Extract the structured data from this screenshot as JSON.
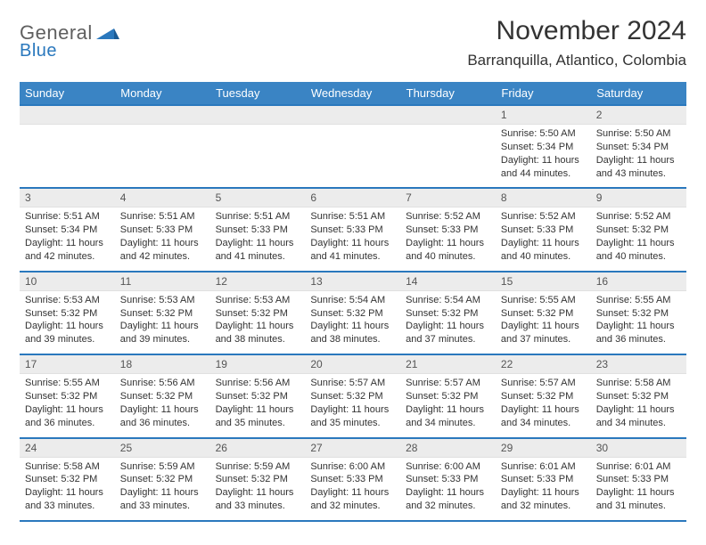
{
  "logo": {
    "text1": "General",
    "text2": "Blue"
  },
  "title": "November 2024",
  "location": "Barranquilla, Atlantico, Colombia",
  "colors": {
    "header_bg": "#3a84c4",
    "header_text": "#ffffff",
    "border": "#2a78bd",
    "daynum_bg": "#ececec",
    "body_text": "#333333",
    "logo_gray": "#5f5f5f",
    "logo_blue": "#2a78bd"
  },
  "dow": [
    "Sunday",
    "Monday",
    "Tuesday",
    "Wednesday",
    "Thursday",
    "Friday",
    "Saturday"
  ],
  "weeks": [
    [
      null,
      null,
      null,
      null,
      null,
      {
        "n": "1",
        "sr": "5:50 AM",
        "ss": "5:34 PM",
        "dl": "11 hours and 44 minutes."
      },
      {
        "n": "2",
        "sr": "5:50 AM",
        "ss": "5:34 PM",
        "dl": "11 hours and 43 minutes."
      }
    ],
    [
      {
        "n": "3",
        "sr": "5:51 AM",
        "ss": "5:34 PM",
        "dl": "11 hours and 42 minutes."
      },
      {
        "n": "4",
        "sr": "5:51 AM",
        "ss": "5:33 PM",
        "dl": "11 hours and 42 minutes."
      },
      {
        "n": "5",
        "sr": "5:51 AM",
        "ss": "5:33 PM",
        "dl": "11 hours and 41 minutes."
      },
      {
        "n": "6",
        "sr": "5:51 AM",
        "ss": "5:33 PM",
        "dl": "11 hours and 41 minutes."
      },
      {
        "n": "7",
        "sr": "5:52 AM",
        "ss": "5:33 PM",
        "dl": "11 hours and 40 minutes."
      },
      {
        "n": "8",
        "sr": "5:52 AM",
        "ss": "5:33 PM",
        "dl": "11 hours and 40 minutes."
      },
      {
        "n": "9",
        "sr": "5:52 AM",
        "ss": "5:32 PM",
        "dl": "11 hours and 40 minutes."
      }
    ],
    [
      {
        "n": "10",
        "sr": "5:53 AM",
        "ss": "5:32 PM",
        "dl": "11 hours and 39 minutes."
      },
      {
        "n": "11",
        "sr": "5:53 AM",
        "ss": "5:32 PM",
        "dl": "11 hours and 39 minutes."
      },
      {
        "n": "12",
        "sr": "5:53 AM",
        "ss": "5:32 PM",
        "dl": "11 hours and 38 minutes."
      },
      {
        "n": "13",
        "sr": "5:54 AM",
        "ss": "5:32 PM",
        "dl": "11 hours and 38 minutes."
      },
      {
        "n": "14",
        "sr": "5:54 AM",
        "ss": "5:32 PM",
        "dl": "11 hours and 37 minutes."
      },
      {
        "n": "15",
        "sr": "5:55 AM",
        "ss": "5:32 PM",
        "dl": "11 hours and 37 minutes."
      },
      {
        "n": "16",
        "sr": "5:55 AM",
        "ss": "5:32 PM",
        "dl": "11 hours and 36 minutes."
      }
    ],
    [
      {
        "n": "17",
        "sr": "5:55 AM",
        "ss": "5:32 PM",
        "dl": "11 hours and 36 minutes."
      },
      {
        "n": "18",
        "sr": "5:56 AM",
        "ss": "5:32 PM",
        "dl": "11 hours and 36 minutes."
      },
      {
        "n": "19",
        "sr": "5:56 AM",
        "ss": "5:32 PM",
        "dl": "11 hours and 35 minutes."
      },
      {
        "n": "20",
        "sr": "5:57 AM",
        "ss": "5:32 PM",
        "dl": "11 hours and 35 minutes."
      },
      {
        "n": "21",
        "sr": "5:57 AM",
        "ss": "5:32 PM",
        "dl": "11 hours and 34 minutes."
      },
      {
        "n": "22",
        "sr": "5:57 AM",
        "ss": "5:32 PM",
        "dl": "11 hours and 34 minutes."
      },
      {
        "n": "23",
        "sr": "5:58 AM",
        "ss": "5:32 PM",
        "dl": "11 hours and 34 minutes."
      }
    ],
    [
      {
        "n": "24",
        "sr": "5:58 AM",
        "ss": "5:32 PM",
        "dl": "11 hours and 33 minutes."
      },
      {
        "n": "25",
        "sr": "5:59 AM",
        "ss": "5:32 PM",
        "dl": "11 hours and 33 minutes."
      },
      {
        "n": "26",
        "sr": "5:59 AM",
        "ss": "5:32 PM",
        "dl": "11 hours and 33 minutes."
      },
      {
        "n": "27",
        "sr": "6:00 AM",
        "ss": "5:33 PM",
        "dl": "11 hours and 32 minutes."
      },
      {
        "n": "28",
        "sr": "6:00 AM",
        "ss": "5:33 PM",
        "dl": "11 hours and 32 minutes."
      },
      {
        "n": "29",
        "sr": "6:01 AM",
        "ss": "5:33 PM",
        "dl": "11 hours and 32 minutes."
      },
      {
        "n": "30",
        "sr": "6:01 AM",
        "ss": "5:33 PM",
        "dl": "11 hours and 31 minutes."
      }
    ]
  ],
  "labels": {
    "sunrise": "Sunrise: ",
    "sunset": "Sunset: ",
    "daylight": "Daylight: "
  }
}
